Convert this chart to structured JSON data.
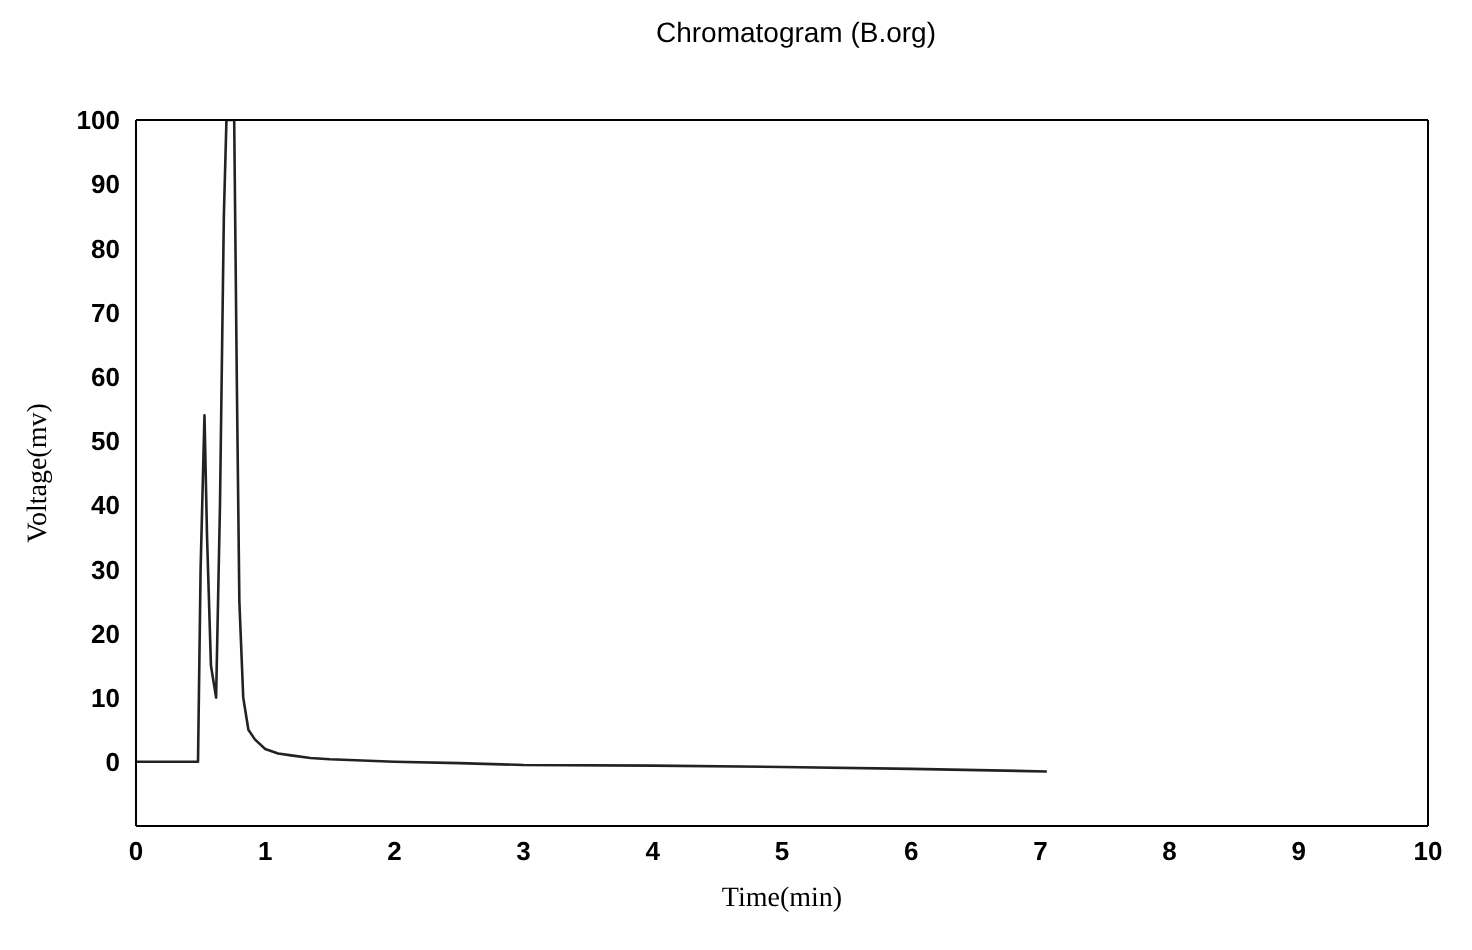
{
  "chart_data": {
    "type": "line",
    "title": "Chromatogram (B.org)",
    "xlabel": "Time(min)",
    "ylabel": "Voltage(mv)",
    "xlim": [
      0,
      10
    ],
    "ylim": [
      -10,
      100
    ],
    "xticks": [
      0,
      1,
      2,
      3,
      4,
      5,
      6,
      7,
      8,
      9,
      10
    ],
    "yticks": [
      0,
      10,
      20,
      30,
      40,
      50,
      60,
      70,
      80,
      90,
      100
    ],
    "grid": false,
    "legend": false,
    "marker": "none",
    "line_style": "solid",
    "series": [
      {
        "color": "#222222",
        "x": [
          0,
          0.47,
          0.48,
          0.5,
          0.53,
          0.55,
          0.58,
          0.62,
          0.65,
          0.68,
          0.7,
          0.76,
          0.78,
          0.8,
          0.83,
          0.87,
          0.92,
          1.0,
          1.1,
          1.2,
          1.35,
          1.5,
          1.75,
          2,
          2.5,
          3,
          4,
          5,
          6,
          7.05
        ],
        "values": [
          0,
          0,
          0,
          30,
          54,
          35,
          15,
          10,
          40,
          85,
          100,
          100,
          60,
          25,
          10,
          5,
          3.5,
          2,
          1.3,
          1,
          0.6,
          0.4,
          0.2,
          0,
          -0.2,
          -0.5,
          -0.6,
          -0.8,
          -1.1,
          -1.5
        ]
      }
    ]
  }
}
